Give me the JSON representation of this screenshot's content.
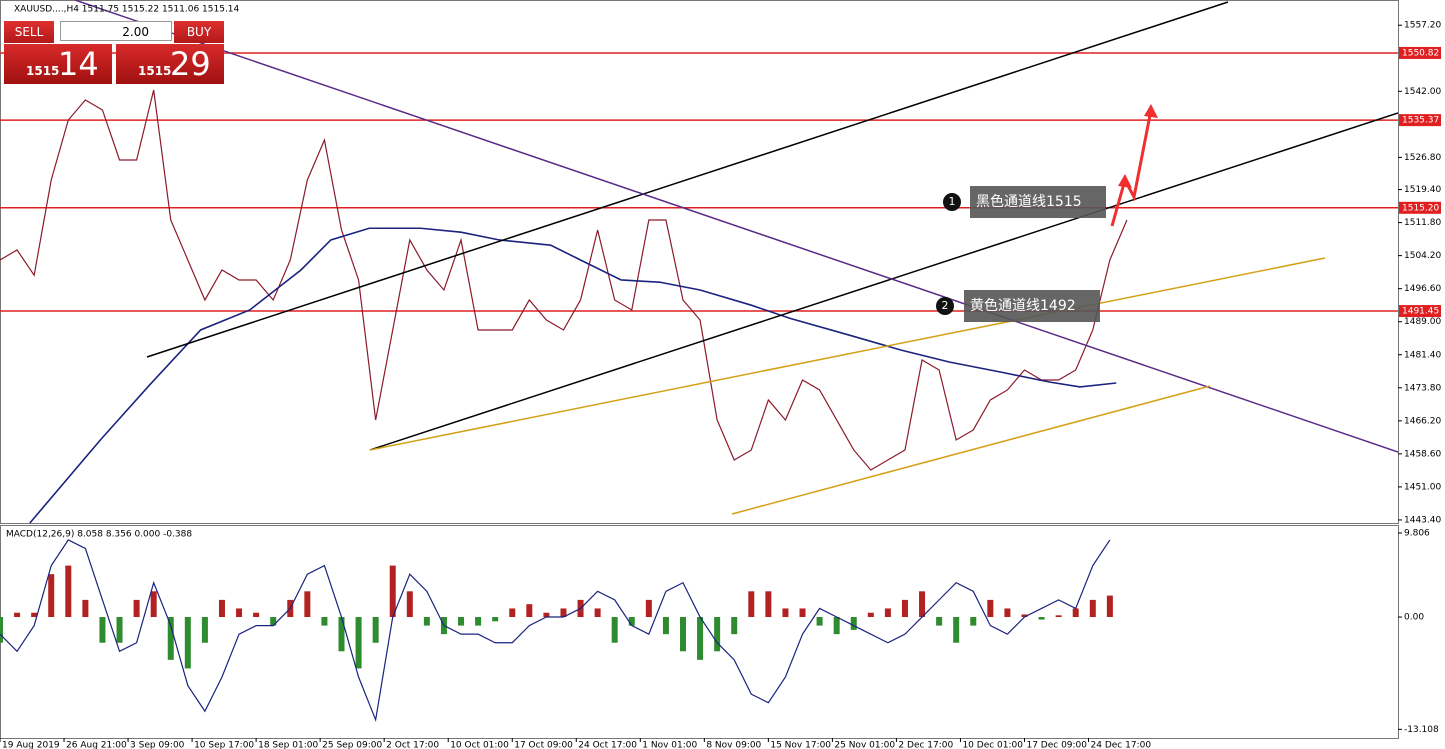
{
  "chart_data": [
    {
      "type": "line",
      "title": "XAUUSD....,H4  1511.75 1515.22 1511.06 1515.14",
      "xlim": [
        0,
        655
      ],
      "ylim": [
        1442.7,
        1563.0
      ],
      "xticks": [
        {
          "value": 0,
          "label": "19 Aug 2019"
        },
        {
          "value": 30,
          "label": "26 Aug 21:00"
        },
        {
          "value": 60,
          "label": "3 Sep 09:00"
        },
        {
          "value": 90,
          "label": "10 Sep 17:00"
        },
        {
          "value": 120,
          "label": "18 Sep 01:00"
        },
        {
          "value": 150,
          "label": "25 Sep 09:00"
        },
        {
          "value": 180,
          "label": "2 Oct 17:00"
        },
        {
          "value": 210,
          "label": "10 Oct 01:00"
        },
        {
          "value": 240,
          "label": "17 Oct 09:00"
        },
        {
          "value": 270,
          "label": "24 Oct 17:00"
        },
        {
          "value": 300,
          "label": "1 Nov 01:00"
        },
        {
          "value": 330,
          "label": "8 Nov 09:00"
        },
        {
          "value": 360,
          "label": "15 Nov 17:00"
        },
        {
          "value": 390,
          "label": "25 Nov 01:00"
        },
        {
          "value": 420,
          "label": "2 Dec 17:00"
        },
        {
          "value": 450,
          "label": "10 Dec 01:00"
        },
        {
          "value": 480,
          "label": "17 Dec 09:00"
        },
        {
          "value": 510,
          "label": "24 Dec 17:00"
        }
      ],
      "yticks": [
        {
          "value": 1557.2,
          "label": "1557.20"
        },
        {
          "value": 1542.0,
          "label": "1542.00"
        },
        {
          "value": 1526.8,
          "label": "1526.80"
        },
        {
          "value": 1519.4,
          "label": "1519.40"
        },
        {
          "value": 1511.8,
          "label": "1511.80"
        },
        {
          "value": 1504.2,
          "label": "1504.20"
        },
        {
          "value": 1496.6,
          "label": "1496.60"
        },
        {
          "value": 1489.0,
          "label": "1489.00"
        },
        {
          "value": 1481.4,
          "label": "1481.40"
        },
        {
          "value": 1473.8,
          "label": "1473.80"
        },
        {
          "value": 1466.2,
          "label": "1466.20"
        },
        {
          "value": 1458.6,
          "label": "1458.60"
        },
        {
          "value": 1451.0,
          "label": "1451.00"
        },
        {
          "value": 1443.4,
          "label": "1443.40"
        }
      ],
      "levels": [
        1550.82,
        1535.37,
        {
          "value": 1515.2,
          "label": "1515.20"
        },
        1491.45
      ],
      "level_color": "#e02020",
      "series": [
        {
          "color": "#8b1a2b",
          "x": [
            0,
            8,
            16,
            24,
            32,
            40,
            48,
            56,
            64,
            72,
            80,
            88,
            96,
            104,
            112,
            120,
            128,
            136,
            144,
            152,
            160,
            168,
            176,
            184,
            192,
            200,
            208,
            216,
            224,
            232,
            240,
            248,
            256,
            264,
            272,
            280,
            288,
            296,
            304,
            312,
            320,
            328,
            336,
            344,
            352,
            360,
            368,
            376,
            384,
            392,
            400,
            408,
            416,
            424,
            432,
            440,
            448,
            456,
            464,
            472,
            480,
            488,
            496,
            504,
            512,
            520,
            528
          ],
          "values": [
            1503.2,
            1505.5,
            1499.7,
            1521.6,
            1535.4,
            1540.0,
            1537.7,
            1526.2,
            1526.2,
            1542.3,
            1512.4,
            1503.2,
            1494.0,
            1500.9,
            1498.6,
            1498.6,
            1494.0,
            1503.2,
            1521.6,
            1530.8,
            1510.1,
            1498.6,
            1466.4,
            1487.1,
            1507.8,
            1500.9,
            1496.3,
            1507.8,
            1487.1,
            1487.1,
            1487.1,
            1494.0,
            1489.4,
            1487.1,
            1494.0,
            1510.1,
            1494.0,
            1491.7,
            1512.4,
            1512.4,
            1494.0,
            1489.4,
            1466.4,
            1457.2,
            1459.5,
            1471.0,
            1466.4,
            1475.6,
            1473.3,
            1466.4,
            1459.5,
            1454.9,
            1457.2,
            1459.5,
            1480.2,
            1477.9,
            1461.8,
            1464.1,
            1471.0,
            1473.3,
            1477.9,
            1475.6,
            1475.6,
            1477.9,
            1487.1,
            1503.2,
            1512.4
          ]
        },
        {
          "color": "#1a237e",
          "x": [
            14,
            47,
            70,
            94,
            117,
            141,
            155,
            173,
            197,
            216,
            234,
            258,
            272,
            291,
            309,
            328,
            352,
            370,
            398,
            422,
            445,
            469,
            492,
            506,
            523
          ],
          "values": [
            1442.7,
            1461.8,
            1474.4,
            1487.1,
            1491.7,
            1500.9,
            1507.8,
            1510.5,
            1510.5,
            1509.6,
            1507.8,
            1506.6,
            1503.2,
            1498.6,
            1498.1,
            1496.3,
            1492.8,
            1489.8,
            1485.9,
            1482.5,
            1479.7,
            1477.4,
            1475.1,
            1474.0,
            1474.9
          ]
        }
      ]
    },
    {
      "type": "bar",
      "title": "MACD(12,26,9) 8.058 8.356 0.000 -0.388",
      "xlim": [
        0,
        655
      ],
      "ylim": [
        -14.12,
        10.74
      ],
      "yticks": [
        9.806,
        {
          "value": 0,
          "label": "0.00"
        },
        -13.108
      ],
      "positive_color": "#b22222",
      "negative_color": "#2e8b2e",
      "x": [
        0,
        8,
        16,
        24,
        32,
        40,
        48,
        56,
        64,
        72,
        80,
        88,
        96,
        104,
        112,
        120,
        128,
        136,
        144,
        152,
        160,
        168,
        176,
        184,
        192,
        200,
        208,
        216,
        224,
        232,
        240,
        248,
        256,
        264,
        272,
        280,
        288,
        296,
        304,
        312,
        320,
        328,
        336,
        344,
        352,
        360,
        368,
        376,
        384,
        392,
        400,
        408,
        416,
        424,
        432,
        440,
        448,
        456,
        464,
        472,
        480,
        488,
        496,
        504,
        512,
        520
      ],
      "values": [
        -3,
        0.5,
        0.5,
        5,
        6,
        2,
        -3,
        -3,
        2,
        3,
        -5,
        -6,
        -3,
        2,
        1,
        0.5,
        -1,
        2,
        3,
        -1,
        -4,
        -6,
        -3,
        6,
        3,
        -1,
        -2,
        -1,
        -1,
        -0.5,
        1,
        1.5,
        0.5,
        1,
        2,
        1,
        -3,
        -1,
        2,
        -2,
        -4,
        -5,
        -4,
        -2,
        3,
        3,
        1,
        1,
        -1,
        -2,
        -1.5,
        0.5,
        1,
        2,
        3,
        -1,
        -3,
        -1,
        2,
        1,
        0.3,
        -0.3,
        0.2,
        1,
        2,
        2.5
      ],
      "line": {
        "color": "#1a237e",
        "values": [
          -2,
          -4,
          -1,
          6,
          9,
          8,
          2,
          -4,
          -3,
          4,
          -1,
          -8,
          -11,
          -7,
          -2,
          -1,
          -1,
          1,
          5,
          6,
          0,
          -7,
          -12,
          0,
          5,
          3,
          -1,
          -2,
          -2,
          -3,
          -3,
          -1,
          0,
          0,
          1,
          3,
          2,
          -1,
          -2,
          3,
          4,
          0,
          -3,
          -5,
          -9,
          -10,
          -7,
          -2,
          1,
          0,
          -1,
          -2,
          -3,
          -2,
          0,
          2,
          4,
          3,
          -1,
          -2,
          0,
          1,
          2,
          1,
          6,
          9
        ]
      }
    }
  ],
  "annotations": [
    {
      "number": "1",
      "text": "黑色通道线1515"
    },
    {
      "number": "2",
      "text": "黄色通道线1492"
    }
  ],
  "trade_panel": {
    "sell": "SELL",
    "buy": "BUY",
    "lots": "2.00",
    "bid_big": "1515",
    "bid_small": "14",
    "ask_big": "1515",
    "ask_small": "29"
  }
}
